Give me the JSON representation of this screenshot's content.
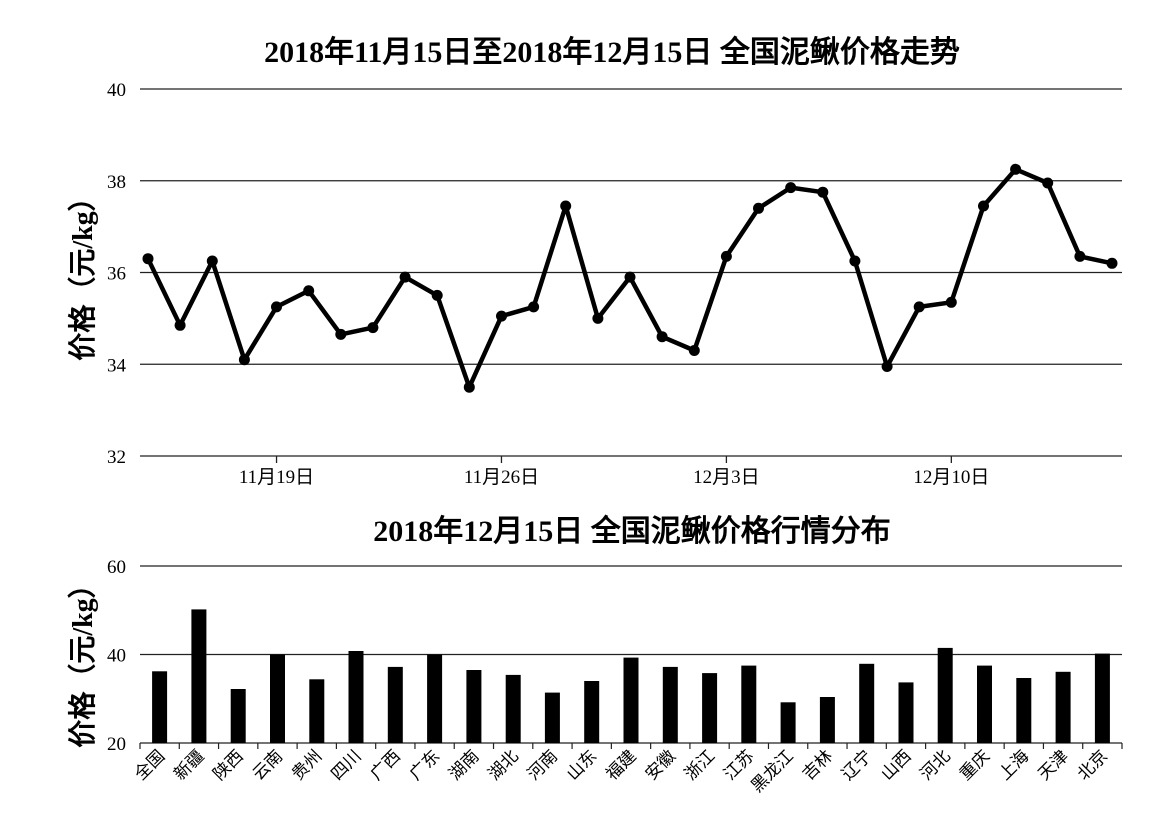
{
  "chart_data": [
    {
      "type": "line",
      "title": "2018年11月15日至2018年12月15日 全国泥鳅价格走势",
      "ylabel": "价格（元/kg）",
      "xlabel": "",
      "ylim": [
        32,
        40
      ],
      "yticks": [
        "32",
        "34",
        "36",
        "38",
        "40"
      ],
      "x_start": "2018-11-15",
      "x_end": "2018-12-15",
      "xtick_labels": [
        "11月19日",
        "11月26日",
        "12月3日",
        "12月10日"
      ],
      "grid": true,
      "series": [
        {
          "x": [
            "2018-11-15",
            "2018-11-16",
            "2018-11-17",
            "2018-11-18",
            "2018-11-19",
            "2018-11-20",
            "2018-11-21",
            "2018-11-22",
            "2018-11-23",
            "2018-11-24",
            "2018-11-25",
            "2018-11-26",
            "2018-11-27",
            "2018-11-28",
            "2018-11-29",
            "2018-11-30",
            "2018-12-01",
            "2018-12-02",
            "2018-12-03",
            "2018-12-04",
            "2018-12-05",
            "2018-12-06",
            "2018-12-07",
            "2018-12-08",
            "2018-12-09",
            "2018-12-10",
            "2018-12-11",
            "2018-12-12",
            "2018-12-13",
            "2018-12-14",
            "2018-12-15"
          ],
          "values": [
            36.3,
            34.85,
            36.25,
            34.1,
            35.25,
            35.6,
            34.65,
            34.8,
            35.9,
            35.5,
            33.5,
            35.05,
            35.25,
            37.45,
            35.0,
            35.9,
            34.6,
            34.3,
            36.35,
            37.4,
            37.85,
            37.75,
            36.25,
            33.95,
            35.25,
            35.35,
            37.45,
            38.25,
            37.95,
            36.35,
            36.2
          ]
        }
      ]
    },
    {
      "type": "bar",
      "title": "2018年12月15日 全国泥鳅价格行情分布",
      "ylabel": "价格（元/kg）",
      "xlabel": "",
      "ylim": [
        20,
        60
      ],
      "yticks": [
        "20",
        "40",
        "60"
      ],
      "grid": true,
      "categories": [
        "全国",
        "新疆",
        "陕西",
        "云南",
        "贵州",
        "四川",
        "广西",
        "广东",
        "湖南",
        "湖北",
        "河南",
        "山东",
        "福建",
        "安徽",
        "浙江",
        "江苏",
        "黑龙江",
        "吉林",
        "辽宁",
        "山西",
        "河北",
        "重庆",
        "上海",
        "天津",
        "北京"
      ],
      "values": [
        36.2,
        50.2,
        32.2,
        40.0,
        34.4,
        40.8,
        37.2,
        40.0,
        36.5,
        35.4,
        31.4,
        34.0,
        39.3,
        37.2,
        35.8,
        37.5,
        29.2,
        30.4,
        37.9,
        33.7,
        41.5,
        37.5,
        34.7,
        36.1,
        40.2
      ]
    }
  ]
}
